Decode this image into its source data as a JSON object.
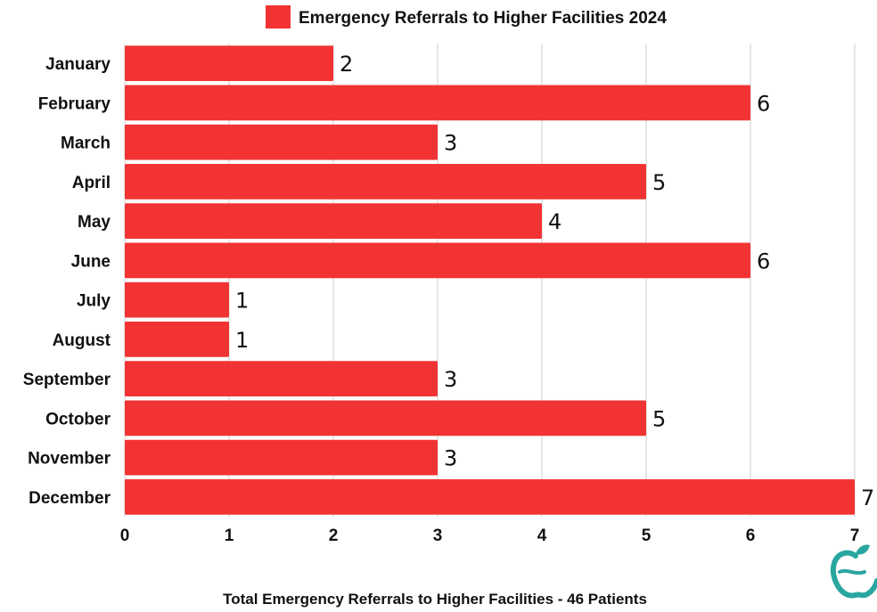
{
  "chart_data": {
    "type": "bar",
    "orientation": "horizontal",
    "categories": [
      "January",
      "February",
      "March",
      "April",
      "May",
      "June",
      "July",
      "August",
      "September",
      "October",
      "November",
      "December"
    ],
    "series": [
      {
        "name": "Emergency Referrals to Higher Facilities 2024",
        "values": [
          2,
          6,
          3,
          5,
          4,
          6,
          1,
          1,
          3,
          5,
          3,
          7
        ]
      }
    ],
    "xlim": [
      0,
      7
    ],
    "x_ticks": [
      "0",
      "1",
      "2",
      "3",
      "4",
      "5",
      "6",
      "7"
    ],
    "grid": true,
    "legend": "top",
    "bar_color": "#f23333",
    "data_labels": true
  },
  "footer": {
    "text": "Total Emergency Referrals to  Higher Facilities  - 46 Patients"
  },
  "logo": {
    "icon": "apple-logo-icon",
    "color": "#2aa6a0"
  }
}
